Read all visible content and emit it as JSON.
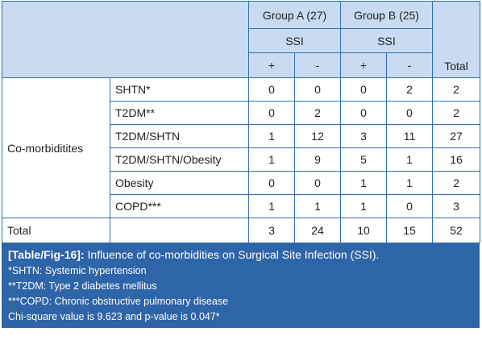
{
  "header": {
    "group_a": "Group A (27)",
    "group_b": "Group B (25)",
    "ssi_a": "SSI",
    "ssi_b": "SSI",
    "plus_a": "+",
    "minus_a": "-",
    "plus_b": "+",
    "minus_b": "-",
    "total": "Total"
  },
  "comorbidities_label": "Co-morbiditites",
  "rows": [
    {
      "name": "SHTN*",
      "a_plus": "0",
      "a_minus": "0",
      "b_plus": "0",
      "b_minus": "2",
      "total": "2"
    },
    {
      "name": "T2DM**",
      "a_plus": "0",
      "a_minus": "2",
      "b_plus": "0",
      "b_minus": "0",
      "total": "2"
    },
    {
      "name": "T2DM/SHTN",
      "a_plus": "1",
      "a_minus": "12",
      "b_plus": "3",
      "b_minus": "11",
      "total": "27"
    },
    {
      "name": "T2DM/SHTN/Obesity",
      "a_plus": "1",
      "a_minus": "9",
      "b_plus": "5",
      "b_minus": "1",
      "total": "16"
    },
    {
      "name": "Obesity",
      "a_plus": "0",
      "a_minus": "0",
      "b_plus": "1",
      "b_minus": "1",
      "total": "2"
    },
    {
      "name": "COPD***",
      "a_plus": "1",
      "a_minus": "1",
      "b_plus": "1",
      "b_minus": "0",
      "total": "3"
    }
  ],
  "total_row": {
    "label": "Total",
    "a_plus": "3",
    "a_minus": "24",
    "b_plus": "10",
    "b_minus": "15",
    "total": "52"
  },
  "caption": {
    "label": "[Table/Fig-16]:",
    "title": "Influence of co-morbidities on Surgical Site Infection (SSI).",
    "notes": [
      "*SHTN: Systemic hypertension",
      "**T2DM: Type 2 diabetes mellitus",
      "***COPD: Chronic obstructive pulmonary disease",
      "Chi-square value is 9.623 and p-value is 0.047*"
    ]
  },
  "colors": {
    "header_bg": "#c9dbf0",
    "border": "#2f6fb1",
    "caption_bg": "#2e64a8"
  }
}
